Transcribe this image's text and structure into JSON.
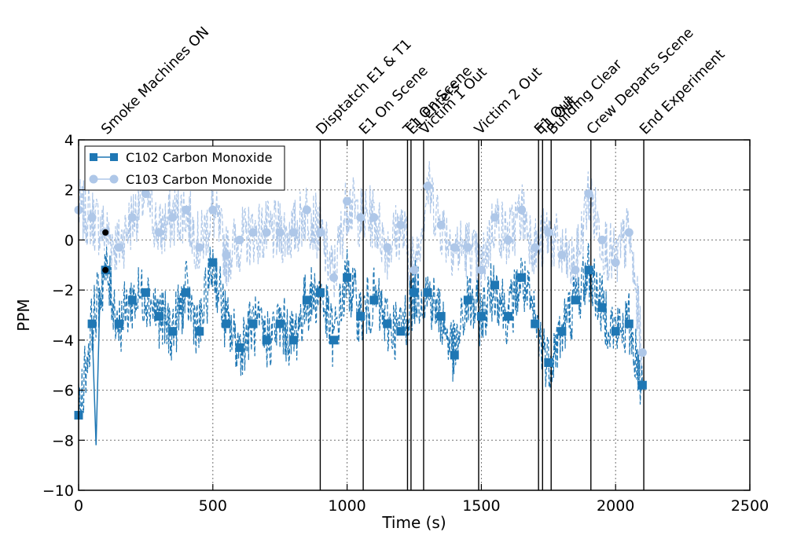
{
  "chart_data": {
    "type": "line",
    "xlabel": "Time (s)",
    "ylabel": "PPM",
    "xlim": [
      0,
      2500
    ],
    "ylim": [
      -10,
      4
    ],
    "xticks": [
      0,
      500,
      1000,
      1500,
      2000,
      2500
    ],
    "yticks": [
      -10,
      -8,
      -6,
      -4,
      -2,
      0,
      2,
      4
    ],
    "xtick_labels": [
      "0",
      "500",
      "1000",
      "1500",
      "2000",
      "2500"
    ],
    "ytick_labels": [
      "−10",
      "−8",
      "−6",
      "−4",
      "−2",
      "0",
      "2",
      "4"
    ],
    "grid": true,
    "legend_position": "top-left",
    "events": [
      {
        "t": 100,
        "label": "Smoke Machines ON"
      },
      {
        "t": 900,
        "label": "Disptatch E1 & T1"
      },
      {
        "t": 1060,
        "label": "E1 On Scene"
      },
      {
        "t": 1225,
        "label": "T1 On Scene"
      },
      {
        "t": 1238,
        "label": "E1 Enters"
      },
      {
        "t": 1285,
        "label": "Victim 1 Out"
      },
      {
        "t": 1490,
        "label": "Victim 2 Out"
      },
      {
        "t": 1713,
        "label": "E1 Out"
      },
      {
        "t": 1728,
        "label": "T1 Out"
      },
      {
        "t": 1760,
        "label": "Building Clear"
      },
      {
        "t": 1908,
        "label": "Crew Departs Scene"
      },
      {
        "t": 2105,
        "label": "End Experiment"
      }
    ],
    "series": [
      {
        "name": "C102 Carbon Monoxide",
        "color": "#1f77b4",
        "marker": "square",
        "markers": [
          [
            0,
            -7.0
          ],
          [
            50,
            -3.35
          ],
          [
            100,
            -1.2
          ],
          [
            150,
            -3.35
          ],
          [
            200,
            -2.4
          ],
          [
            250,
            -2.1
          ],
          [
            300,
            -3.05
          ],
          [
            350,
            -3.65
          ],
          [
            400,
            -2.1
          ],
          [
            450,
            -3.65
          ],
          [
            500,
            -0.9
          ],
          [
            550,
            -3.35
          ],
          [
            600,
            -4.3
          ],
          [
            650,
            -3.35
          ],
          [
            700,
            -4.0
          ],
          [
            750,
            -3.35
          ],
          [
            800,
            -4.0
          ],
          [
            850,
            -2.4
          ],
          [
            900,
            -2.1
          ],
          [
            950,
            -4.0
          ],
          [
            1000,
            -1.5
          ],
          [
            1050,
            -3.05
          ],
          [
            1100,
            -2.4
          ],
          [
            1150,
            -3.35
          ],
          [
            1200,
            -3.65
          ],
          [
            1250,
            -2.1
          ],
          [
            1300,
            -2.1
          ],
          [
            1350,
            -3.05
          ],
          [
            1400,
            -4.6
          ],
          [
            1450,
            -2.4
          ],
          [
            1500,
            -3.05
          ],
          [
            1550,
            -1.8
          ],
          [
            1600,
            -3.05
          ],
          [
            1650,
            -1.5
          ],
          [
            1700,
            -3.35
          ],
          [
            1750,
            -4.9
          ],
          [
            1800,
            -3.65
          ],
          [
            1850,
            -2.4
          ],
          [
            1900,
            -1.2
          ],
          [
            1950,
            -2.7
          ],
          [
            2000,
            -3.65
          ],
          [
            2050,
            -3.35
          ],
          [
            2100,
            -5.8
          ]
        ]
      },
      {
        "name": "C103 Carbon Monoxide",
        "color": "#aec7e8",
        "marker": "circle",
        "markers": [
          [
            0,
            1.2
          ],
          [
            50,
            0.9
          ],
          [
            100,
            0.3
          ],
          [
            150,
            -0.3
          ],
          [
            200,
            0.9
          ],
          [
            250,
            1.85
          ],
          [
            300,
            0.3
          ],
          [
            350,
            0.9
          ],
          [
            400,
            1.2
          ],
          [
            450,
            -0.3
          ],
          [
            500,
            1.2
          ],
          [
            550,
            -0.6
          ],
          [
            600,
            0.0
          ],
          [
            650,
            0.3
          ],
          [
            700,
            0.3
          ],
          [
            750,
            0.3
          ],
          [
            800,
            0.3
          ],
          [
            850,
            1.2
          ],
          [
            900,
            0.3
          ],
          [
            950,
            -1.5
          ],
          [
            1000,
            1.55
          ],
          [
            1050,
            0.9
          ],
          [
            1100,
            0.9
          ],
          [
            1150,
            -0.3
          ],
          [
            1200,
            0.6
          ],
          [
            1250,
            -1.2
          ],
          [
            1300,
            2.15
          ],
          [
            1350,
            0.6
          ],
          [
            1400,
            -0.3
          ],
          [
            1450,
            -0.3
          ],
          [
            1500,
            -1.2
          ],
          [
            1550,
            0.9
          ],
          [
            1600,
            0.0
          ],
          [
            1650,
            1.2
          ],
          [
            1700,
            -0.3
          ],
          [
            1750,
            0.3
          ],
          [
            1800,
            -0.6
          ],
          [
            1850,
            -1.2
          ],
          [
            1900,
            1.85
          ],
          [
            1950,
            0.0
          ],
          [
            2000,
            -0.9
          ],
          [
            2050,
            0.3
          ],
          [
            2100,
            -4.5
          ]
        ]
      }
    ],
    "event_dots": [
      [
        100,
        0.3
      ],
      [
        100,
        -1.2
      ]
    ]
  }
}
